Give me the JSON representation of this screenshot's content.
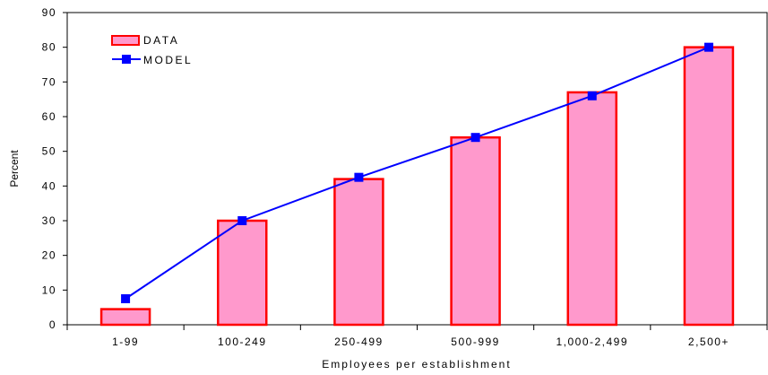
{
  "chart_data": {
    "type": "bar",
    "categories": [
      "1-99",
      "100-249",
      "250-499",
      "500-999",
      "1,000-2,499",
      "2,500+"
    ],
    "series": [
      {
        "name": "DATA",
        "type": "bar",
        "values": [
          4.5,
          30,
          42,
          54,
          67,
          80
        ],
        "color": "#ff99cc",
        "stroke": "#ff0000"
      },
      {
        "name": "MODEL",
        "type": "line",
        "values": [
          7.5,
          30,
          42.5,
          54,
          66,
          80
        ],
        "color": "#0000ff",
        "marker": "square"
      }
    ],
    "xlabel": "Employees per establishment",
    "ylabel": "Percent",
    "ylim": [
      0,
      90
    ],
    "yticks": [
      0,
      10,
      20,
      30,
      40,
      50,
      60,
      70,
      80,
      90
    ],
    "grid": false,
    "legend": "top-left"
  }
}
